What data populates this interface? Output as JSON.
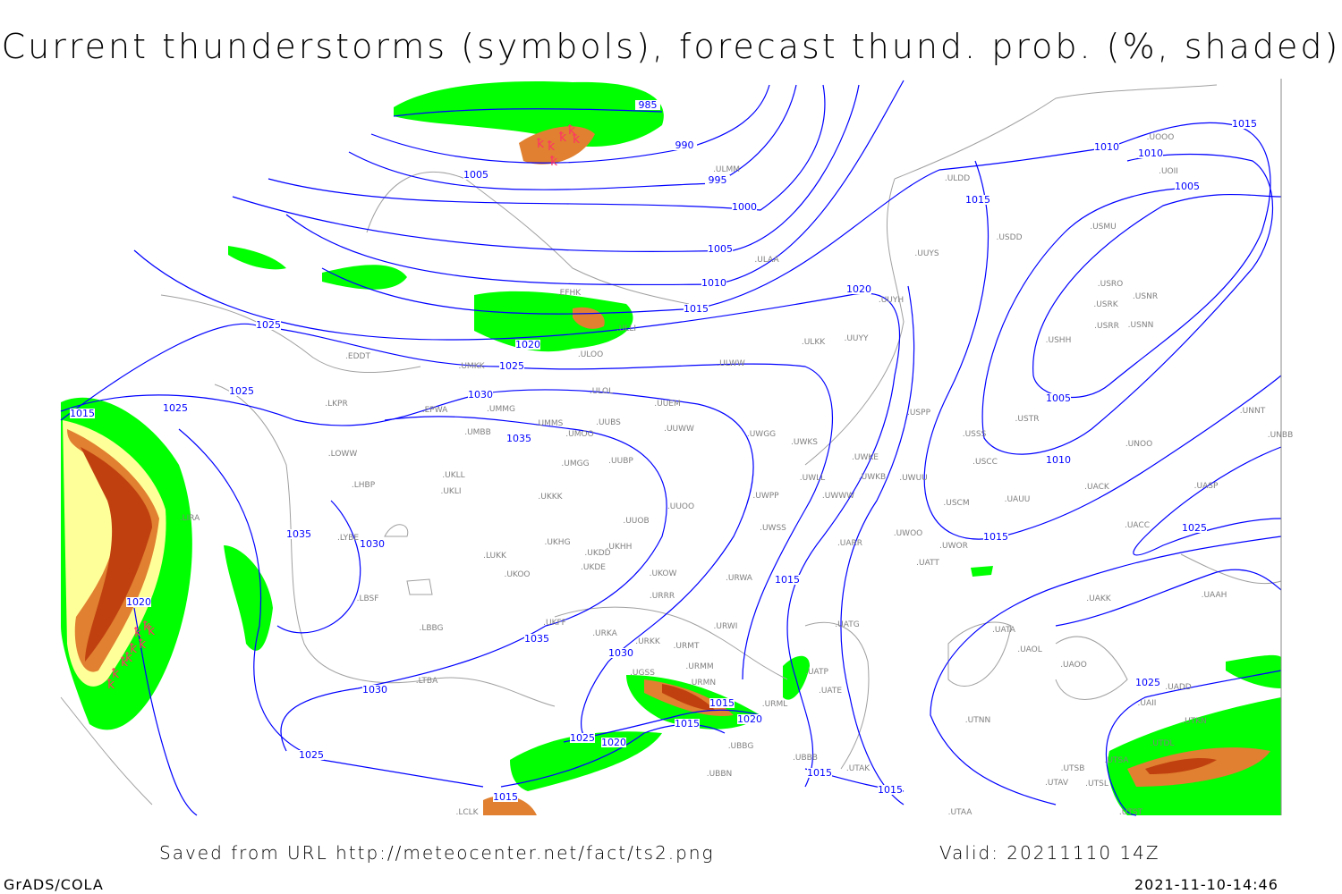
{
  "title": "Current thunderstorms (symbols), forecast thund. prob. (%, shaded)",
  "footer": {
    "source": "Saved from URL http://meteocenter.net/fact/ts2.png",
    "valid": "Valid: 20211110 14Z",
    "software": "GrADS/COLA",
    "timestamp": "2021-11-10-14:46"
  },
  "colors": {
    "isobar": "#0000ff",
    "coastline": "#a0a0a0",
    "prob_low": "#00ff00",
    "prob_mid": "#ffff99",
    "prob_high": "#e08030",
    "prob_max": "#c04010",
    "thunderstorm_symbol": "#ff3366"
  },
  "isobar_labels": [
    "985",
    "990",
    "995",
    "1000",
    "1005",
    "1005",
    "1010",
    "1015",
    "1020",
    "1025",
    "1025",
    "1025",
    "1025",
    "1030",
    "1035",
    "1035",
    "1030",
    "1035",
    "1030",
    "1030",
    "1020",
    "1025",
    "1015",
    "1015",
    "1020",
    "1020",
    "1025",
    "1015",
    "1015",
    "1015",
    "1015",
    "1010",
    "1010",
    "1010",
    "1005",
    "1005",
    "1015",
    "1015",
    "1025",
    "1025",
    "1020",
    "1015",
    "1015"
  ],
  "stations": [
    "ULMM",
    "ULDD",
    "UOOO",
    "UOII",
    "USDD",
    "USMU",
    "ULAA",
    "UUYS",
    "USRO",
    "USRK",
    "USNR",
    "USRR",
    "USNN",
    "UUYH",
    "USHH",
    "EFHK",
    "ULLI",
    "ULKK",
    "UUYY",
    "EDDT",
    "UMKK",
    "ULOO",
    "ULWW",
    "LKPR",
    "ULOL",
    "UUEM",
    "EPWA",
    "UMMG",
    "UMMS",
    "UMOO",
    "UUBS",
    "UUWW",
    "UWGG",
    "UWKS",
    "USPP",
    "USTR",
    "USSS",
    "UNNT",
    "UNBB",
    "UNOO",
    "UMBB",
    "UUBP",
    "UMGG",
    "UWKE",
    "USCC",
    "LOWW",
    "UKLL",
    "UWKB",
    "UWUU",
    "UWLL",
    "LHBP",
    "UKLI",
    "UKKK",
    "UWPP",
    "UWWW",
    "USCM",
    "UAUU",
    "UACK",
    "UASP",
    "UUOO",
    "LIRA",
    "UUOB",
    "UWSS",
    "LYBE",
    "UKHH",
    "UKHG",
    "UKDD",
    "UARR",
    "UWOO",
    "UWOR",
    "UACC",
    "LUKK",
    "UKDE",
    "UKOW",
    "UATT",
    "UKOO",
    "URWA",
    "LBSF",
    "URRR",
    "UAKK",
    "UAAH",
    "UKFF",
    "URKA",
    "URKK",
    "URWI",
    "UATG",
    "UATA",
    "LBBG",
    "URMT",
    "UAOL",
    "UGSS",
    "URMM",
    "UATP",
    "UAOO",
    "UADD",
    "URMN",
    "LTBA",
    "UATE",
    "UAII",
    "URML",
    "UTKN",
    "UTNN",
    "UBBG",
    "UTDL",
    "UBBB",
    "UTAK",
    "UTSA",
    "UTSB",
    "UBBN",
    "UTAV",
    "UTSL",
    "LCLK",
    "UTAA",
    "UTST"
  ]
}
